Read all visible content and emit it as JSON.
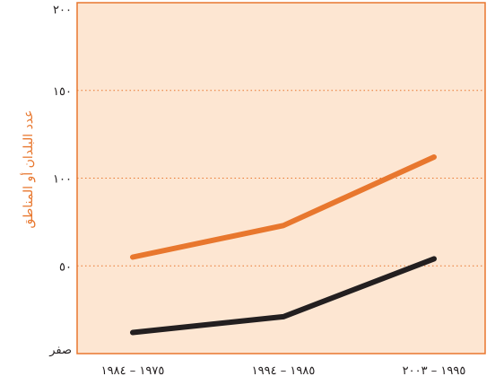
{
  "chart_data": {
    "type": "line",
    "title": "",
    "xlabel": "",
    "ylabel": "عدد البلدان أو المناطق",
    "categories": [
      "١٩٧٥ – ١٩٨٤",
      "١٩٨٥ – ١٩٩٤",
      "١٩٩٥ – ٢٠٠٣"
    ],
    "series": [
      {
        "values": [
          55,
          73,
          112
        ],
        "color": "#e8772e"
      },
      {
        "values": [
          12,
          21,
          54
        ],
        "color": "#231f20"
      }
    ],
    "ylim": [
      0,
      200
    ],
    "yticks": [
      {
        "value": 0,
        "label": "صفر"
      },
      {
        "value": 50,
        "label": "٥٠"
      },
      {
        "value": 100,
        "label": "١٠٠"
      },
      {
        "value": 150,
        "label": "١٥٠"
      },
      {
        "value": 200,
        "label": "٢٠٠"
      }
    ],
    "grid": true,
    "legend": "none",
    "colors": {
      "plot_background": "#fde6d2",
      "frame": "#e8772e",
      "gridline": "#e8772e"
    }
  }
}
